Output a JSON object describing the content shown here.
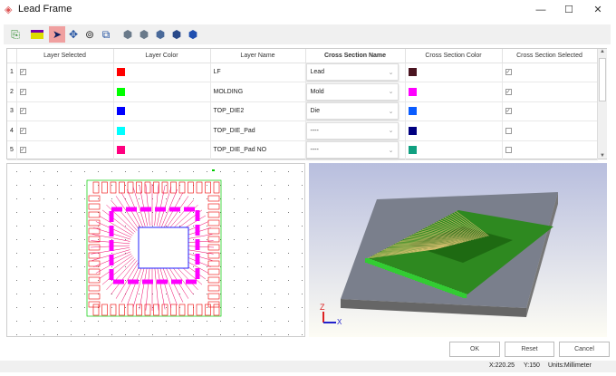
{
  "window": {
    "title": "Lead Frame",
    "minimize": "—",
    "maximize": "☐",
    "close": "✕"
  },
  "toolbar": {
    "icons": [
      "import-icon",
      "layer-icon",
      "select-pointer-icon",
      "pan-icon",
      "zoom-icon",
      "zoom-window-icon",
      "view-iso-icon",
      "view-front-icon",
      "view-side-icon",
      "view-top-icon",
      "view-3d-icon"
    ]
  },
  "table": {
    "headers": [
      "Layer Selected",
      "Layer Color",
      "Layer Name",
      "Cross Section Name",
      "Cross Section Color",
      "Cross Section Selected"
    ],
    "rows": [
      {
        "num": "1",
        "selected": true,
        "color": "#ff0000",
        "name": "LF",
        "cs_name": "Lead",
        "cs_color": "#4a1420",
        "cs_selected": true
      },
      {
        "num": "2",
        "selected": true,
        "color": "#00ff00",
        "name": "MOLDING",
        "cs_name": "Mold",
        "cs_color": "#ff00ff",
        "cs_selected": true
      },
      {
        "num": "3",
        "selected": true,
        "color": "#0000ff",
        "name": "TOP_DIE2",
        "cs_name": "Die",
        "cs_color": "#0a5cff",
        "cs_selected": true
      },
      {
        "num": "4",
        "selected": true,
        "color": "#00ffff",
        "name": "TOP_DIE_Pad",
        "cs_name": "----",
        "cs_color": "#000080",
        "cs_selected": false
      },
      {
        "num": "5",
        "selected": true,
        "color": "#ff0080",
        "name": "TOP_DIE_Pad NO",
        "cs_name": "----",
        "cs_color": "#10a080",
        "cs_selected": false
      }
    ]
  },
  "axes": {
    "z": "Z",
    "x": "X"
  },
  "buttons": {
    "ok": "OK",
    "reset": "Reset",
    "cancel": "Cancel"
  },
  "status": {
    "x": "X:220.25",
    "y": "Y:150",
    "units": "Units:Millimeter"
  }
}
